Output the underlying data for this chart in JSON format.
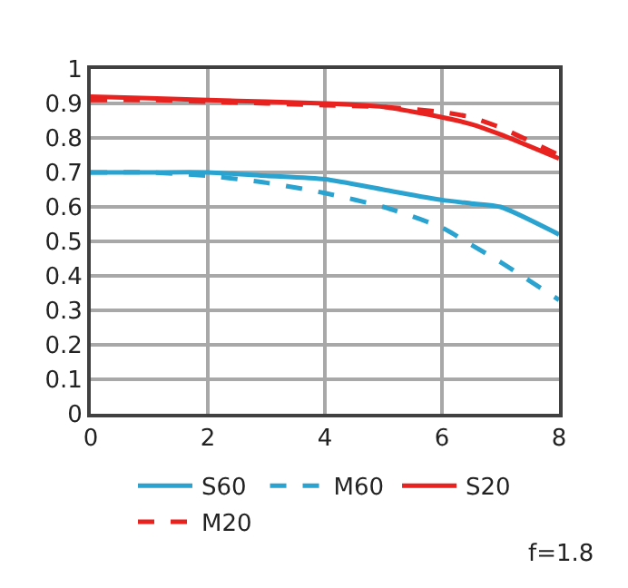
{
  "chart_data": {
    "type": "line",
    "x": [
      0,
      1,
      2,
      3,
      4,
      5,
      6,
      6.5,
      7,
      8
    ],
    "series": [
      {
        "name": "S60",
        "color": "#2aa3d0",
        "line_style": "solid",
        "values": [
          0.7,
          0.7,
          0.7,
          0.69,
          0.68,
          0.65,
          0.62,
          0.61,
          0.6,
          0.52
        ]
      },
      {
        "name": "M60",
        "color": "#2aa3d0",
        "line_style": "dashed",
        "values": [
          0.7,
          0.7,
          0.69,
          0.67,
          0.64,
          0.6,
          0.54,
          0.49,
          0.44,
          0.33
        ]
      },
      {
        "name": "S20",
        "color": "#e8221f",
        "line_style": "solid",
        "values": [
          0.92,
          0.915,
          0.91,
          0.905,
          0.9,
          0.89,
          0.86,
          0.84,
          0.81,
          0.74
        ]
      },
      {
        "name": "M20",
        "color": "#e8221f",
        "line_style": "dashed",
        "values": [
          0.91,
          0.91,
          0.905,
          0.9,
          0.895,
          0.89,
          0.875,
          0.86,
          0.83,
          0.75
        ]
      }
    ],
    "xlim": [
      0,
      8
    ],
    "xticks": [
      0,
      2,
      4,
      6,
      8
    ],
    "ylim": [
      0,
      1
    ],
    "yticks": [
      0,
      0.1,
      0.2,
      0.3,
      0.4,
      0.5,
      0.6,
      0.7,
      0.8,
      0.9,
      1
    ],
    "grid": true,
    "legend": "bottom",
    "marker": "none",
    "annotations": [
      "f=1.8"
    ]
  }
}
